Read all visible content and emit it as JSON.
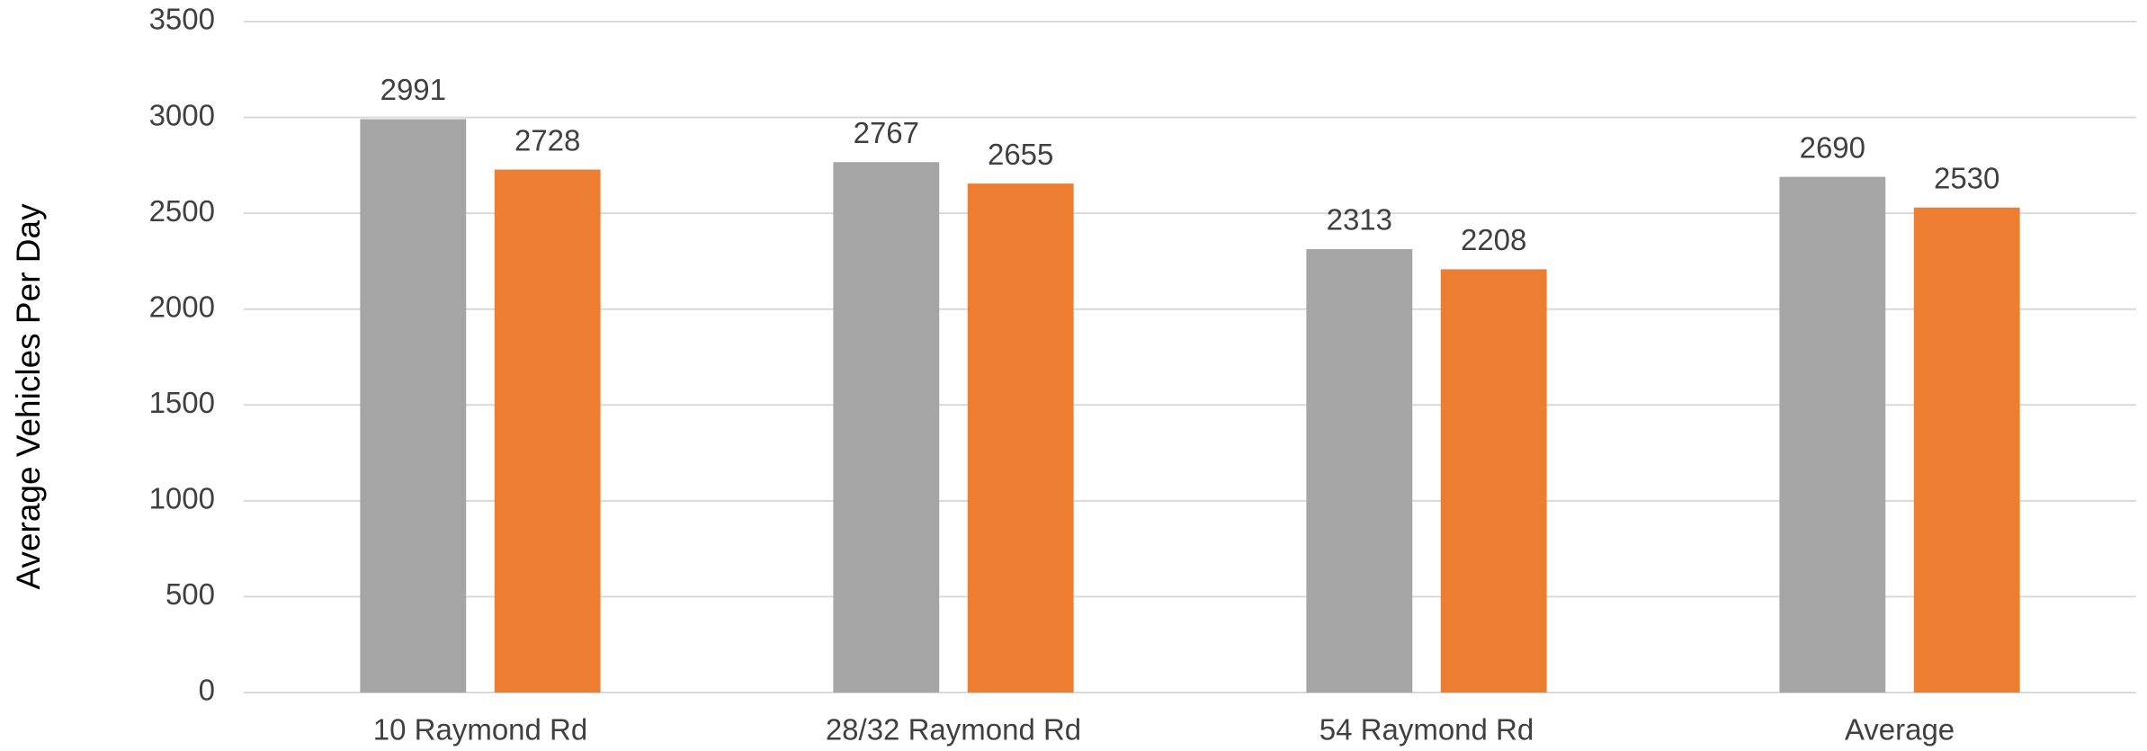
{
  "chart_data": {
    "type": "bar",
    "y_label": "Average Vehicles Per Day",
    "categories": [
      "10 Raymond Rd",
      "28/32 Raymond Rd",
      "54 Raymond Rd",
      "Average"
    ],
    "series": [
      {
        "color": "#a5a5a5",
        "values": [
          2991,
          2767,
          2313,
          2690
        ]
      },
      {
        "color": "#ed7d31",
        "values": [
          2728,
          2655,
          2208,
          2530
        ]
      }
    ],
    "ylim": [
      0,
      3500
    ],
    "yticks": [
      0,
      500,
      1000,
      1500,
      2000,
      2500,
      3000,
      3500
    ],
    "grid": true
  }
}
